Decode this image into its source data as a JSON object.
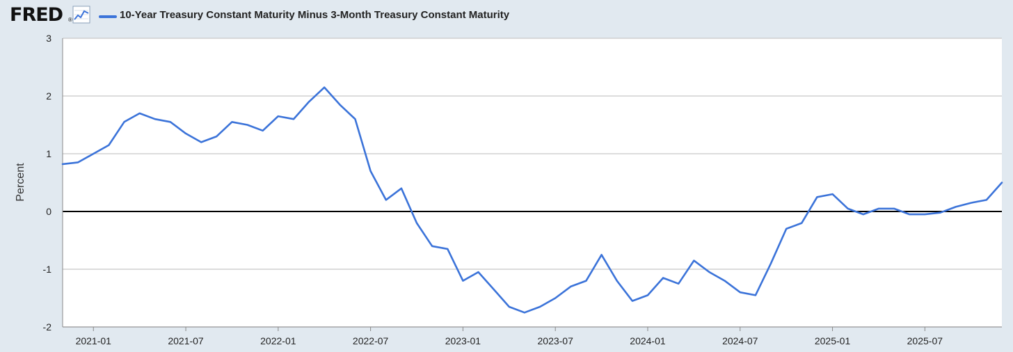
{
  "header": {
    "logo_text": "FRED",
    "logo_mark": "®",
    "trend_icon": "line-chart-icon"
  },
  "colors": {
    "background": "#e1e9f0",
    "plot_background": "#ffffff",
    "series": "#3b73d9",
    "gridline": "#c8c8c8",
    "zero_line": "#000000"
  },
  "chart_data": {
    "type": "line",
    "title": "",
    "xlabel": "",
    "ylabel": "Percent",
    "ylim": [
      -2,
      3
    ],
    "yticks": [
      "3",
      "2",
      "1",
      "0",
      "-1",
      "-2"
    ],
    "yticks_values": [
      3,
      2,
      1,
      0,
      -1,
      -2
    ],
    "xlim": [
      "2020-11",
      "2025-12"
    ],
    "xticks": [
      "2021-01",
      "2021-07",
      "2022-01",
      "2022-07",
      "2023-01",
      "2023-07",
      "2024-01",
      "2024-07",
      "2025-01",
      "2025-07"
    ],
    "grid": true,
    "reference_line": 0,
    "legend_position": "top-left",
    "series": [
      {
        "name": "10-Year Treasury Constant Maturity Minus 3-Month Treasury Constant Maturity",
        "points": [
          [
            "2020-11",
            0.82
          ],
          [
            "2020-12",
            0.85
          ],
          [
            "2021-01",
            1.0
          ],
          [
            "2021-02",
            1.15
          ],
          [
            "2021-03",
            1.55
          ],
          [
            "2021-04",
            1.7
          ],
          [
            "2021-05",
            1.6
          ],
          [
            "2021-06",
            1.55
          ],
          [
            "2021-07",
            1.35
          ],
          [
            "2021-08",
            1.2
          ],
          [
            "2021-09",
            1.3
          ],
          [
            "2021-10",
            1.55
          ],
          [
            "2021-11",
            1.5
          ],
          [
            "2021-12",
            1.4
          ],
          [
            "2022-01",
            1.65
          ],
          [
            "2022-02",
            1.6
          ],
          [
            "2022-03",
            1.9
          ],
          [
            "2022-04",
            2.15
          ],
          [
            "2022-05",
            1.85
          ],
          [
            "2022-06",
            1.6
          ],
          [
            "2022-07",
            0.7
          ],
          [
            "2022-08",
            0.2
          ],
          [
            "2022-09",
            0.4
          ],
          [
            "2022-10",
            -0.2
          ],
          [
            "2022-11",
            -0.6
          ],
          [
            "2022-12",
            -0.65
          ],
          [
            "2023-01",
            -1.2
          ],
          [
            "2023-02",
            -1.05
          ],
          [
            "2023-03",
            -1.35
          ],
          [
            "2023-04",
            -1.65
          ],
          [
            "2023-05",
            -1.75
          ],
          [
            "2023-06",
            -1.65
          ],
          [
            "2023-07",
            -1.5
          ],
          [
            "2023-08",
            -1.3
          ],
          [
            "2023-09",
            -1.2
          ],
          [
            "2023-10",
            -0.75
          ],
          [
            "2023-11",
            -1.2
          ],
          [
            "2023-12",
            -1.55
          ],
          [
            "2024-01",
            -1.45
          ],
          [
            "2024-02",
            -1.15
          ],
          [
            "2024-03",
            -1.25
          ],
          [
            "2024-04",
            -0.85
          ],
          [
            "2024-05",
            -1.05
          ],
          [
            "2024-06",
            -1.2
          ],
          [
            "2024-07",
            -1.4
          ],
          [
            "2024-08",
            -1.45
          ],
          [
            "2024-09",
            -0.9
          ],
          [
            "2024-10",
            -0.3
          ],
          [
            "2024-11",
            -0.2
          ],
          [
            "2024-12",
            0.25
          ],
          [
            "2025-01",
            0.3
          ],
          [
            "2025-02",
            0.05
          ],
          [
            "2025-03",
            -0.05
          ],
          [
            "2025-04",
            0.05
          ],
          [
            "2025-05",
            0.05
          ],
          [
            "2025-06",
            -0.05
          ],
          [
            "2025-07",
            -0.05
          ],
          [
            "2025-08",
            -0.02
          ],
          [
            "2025-09",
            0.08
          ],
          [
            "2025-10",
            0.15
          ],
          [
            "2025-11",
            0.2
          ],
          [
            "2025-12",
            0.5
          ]
        ]
      }
    ]
  }
}
